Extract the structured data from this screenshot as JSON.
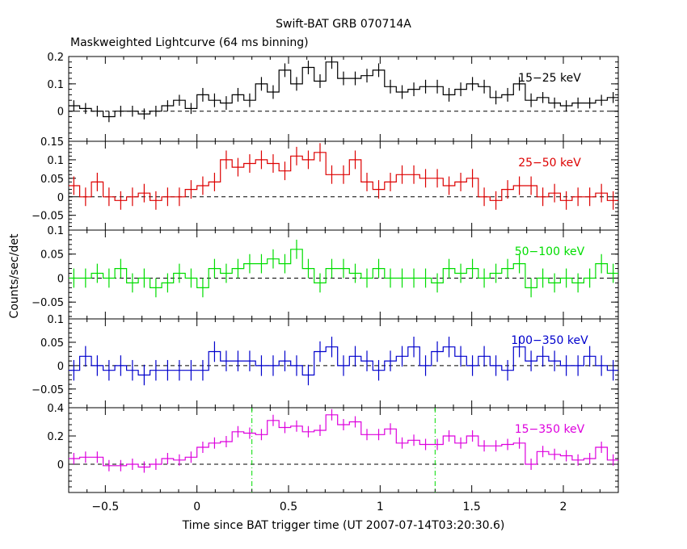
{
  "title": "Swift-BAT GRB 070714A",
  "subtitle": "Maskweighted Lightcurve (64 ms binning)",
  "chart_data": {
    "type": "line",
    "xlabel": "Time since BAT trigger time (UT 2007-07-14T03:20:30.6)",
    "ylabel": "Counts/sec/det",
    "xlim": [
      -0.7,
      2.3
    ],
    "x_ticks": [
      -0.5,
      0,
      0.5,
      1,
      1.5,
      2
    ],
    "x_tick_labels": [
      "−0.5",
      "0",
      "0.5",
      "1",
      "1.5",
      "2"
    ],
    "bin_width": 0.064,
    "x_start": -0.704,
    "step_style": "histogram",
    "grid": false,
    "reference_line": 0,
    "vlines": [
      0.3,
      1.3
    ],
    "panels": [
      {
        "name": "15−25 keV",
        "color": "#000000",
        "ylim": [
          -0.11,
          0.2
        ],
        "y_ticks": [
          0,
          0.1,
          0.2
        ],
        "y_tick_labels": [
          "0",
          "0.1",
          "0.2"
        ],
        "values": [
          0.02,
          0.01,
          0.0,
          -0.02,
          0.0,
          0.0,
          -0.01,
          0.0,
          0.02,
          0.04,
          0.01,
          0.06,
          0.04,
          0.03,
          0.06,
          0.04,
          0.1,
          0.07,
          0.15,
          0.1,
          0.16,
          0.11,
          0.18,
          0.12,
          0.12,
          0.13,
          0.15,
          0.09,
          0.07,
          0.08,
          0.09,
          0.09,
          0.06,
          0.08,
          0.1,
          0.09,
          0.05,
          0.06,
          0.1,
          0.04,
          0.05,
          0.03,
          0.02,
          0.03,
          0.03,
          0.04,
          0.05
        ],
        "errors": [
          0.02,
          0.02,
          0.02,
          0.02,
          0.02,
          0.02,
          0.02,
          0.02,
          0.02,
          0.02,
          0.02,
          0.025,
          0.025,
          0.025,
          0.025,
          0.025,
          0.025,
          0.025,
          0.025,
          0.025,
          0.025,
          0.025,
          0.025,
          0.025,
          0.025,
          0.025,
          0.025,
          0.025,
          0.025,
          0.025,
          0.025,
          0.025,
          0.025,
          0.025,
          0.025,
          0.025,
          0.025,
          0.025,
          0.025,
          0.025,
          0.02,
          0.02,
          0.02,
          0.02,
          0.02,
          0.02,
          0.02
        ]
      },
      {
        "name": "25−50 keV",
        "color": "#dd0000",
        "ylim": [
          -0.09,
          0.15
        ],
        "y_ticks": [
          -0.05,
          0,
          0.05,
          0.1,
          0.15
        ],
        "y_tick_labels": [
          "−0.05",
          "0",
          "0.05",
          "0.1",
          "0.15"
        ],
        "values": [
          0.03,
          0.0,
          0.04,
          0.0,
          -0.01,
          0.0,
          0.01,
          -0.01,
          0.0,
          0.0,
          0.02,
          0.03,
          0.04,
          0.1,
          0.08,
          0.09,
          0.1,
          0.09,
          0.07,
          0.11,
          0.1,
          0.12,
          0.06,
          0.06,
          0.1,
          0.04,
          0.02,
          0.04,
          0.06,
          0.06,
          0.05,
          0.05,
          0.03,
          0.04,
          0.05,
          0.0,
          -0.01,
          0.02,
          0.03,
          0.03,
          0.0,
          0.01,
          -0.01,
          0.0,
          0.0,
          0.01,
          -0.01
        ],
        "errors": [
          0.025,
          0.025,
          0.025,
          0.025,
          0.025,
          0.025,
          0.025,
          0.025,
          0.025,
          0.025,
          0.025,
          0.025,
          0.025,
          0.025,
          0.025,
          0.025,
          0.025,
          0.025,
          0.025,
          0.025,
          0.025,
          0.025,
          0.025,
          0.025,
          0.025,
          0.025,
          0.025,
          0.025,
          0.025,
          0.025,
          0.025,
          0.025,
          0.025,
          0.025,
          0.025,
          0.025,
          0.025,
          0.025,
          0.025,
          0.025,
          0.025,
          0.025,
          0.025,
          0.025,
          0.025,
          0.025,
          0.025
        ]
      },
      {
        "name": "50−100 keV",
        "color": "#00dd00",
        "ylim": [
          -0.085,
          0.1
        ],
        "y_ticks": [
          -0.05,
          0,
          0.05,
          0.1
        ],
        "y_tick_labels": [
          "−0.05",
          "0",
          "0.05",
          "0.1"
        ],
        "values": [
          0.0,
          0.0,
          0.01,
          0.0,
          0.02,
          -0.01,
          0.0,
          -0.02,
          -0.01,
          0.01,
          0.0,
          -0.02,
          0.02,
          0.01,
          0.02,
          0.03,
          0.03,
          0.04,
          0.03,
          0.06,
          0.02,
          -0.01,
          0.02,
          0.02,
          0.01,
          0.0,
          0.02,
          0.0,
          0.0,
          0.0,
          0.0,
          -0.01,
          0.02,
          0.01,
          0.02,
          0.0,
          0.01,
          0.02,
          0.03,
          -0.02,
          0.0,
          -0.01,
          0.0,
          -0.01,
          0.0,
          0.03,
          0.01
        ],
        "errors": [
          0.02,
          0.02,
          0.02,
          0.02,
          0.02,
          0.02,
          0.02,
          0.02,
          0.02,
          0.02,
          0.02,
          0.02,
          0.02,
          0.02,
          0.02,
          0.02,
          0.02,
          0.02,
          0.02,
          0.02,
          0.02,
          0.02,
          0.02,
          0.02,
          0.02,
          0.02,
          0.02,
          0.02,
          0.02,
          0.02,
          0.02,
          0.02,
          0.02,
          0.02,
          0.02,
          0.02,
          0.02,
          0.02,
          0.02,
          0.02,
          0.02,
          0.02,
          0.02,
          0.02,
          0.02,
          0.02,
          0.02
        ]
      },
      {
        "name": "100−350 keV",
        "color": "#0000cc",
        "ylim": [
          -0.09,
          0.1
        ],
        "y_ticks": [
          -0.05,
          0,
          0.05,
          0.1
        ],
        "y_tick_labels": [
          "−0.05",
          "0",
          "0.05",
          "0.1"
        ],
        "values": [
          -0.01,
          0.02,
          0.0,
          -0.01,
          0.0,
          -0.01,
          -0.02,
          -0.01,
          -0.01,
          -0.01,
          -0.01,
          -0.01,
          0.03,
          0.01,
          0.01,
          0.01,
          0.0,
          0.0,
          0.01,
          0.0,
          -0.02,
          0.03,
          0.04,
          0.0,
          0.02,
          0.01,
          -0.01,
          0.01,
          0.02,
          0.04,
          0.0,
          0.03,
          0.04,
          0.02,
          0.0,
          0.02,
          0.0,
          -0.01,
          0.04,
          0.01,
          0.02,
          0.01,
          0.0,
          0.0,
          0.02,
          0.0,
          -0.01
        ],
        "errors": [
          0.022,
          0.022,
          0.022,
          0.022,
          0.022,
          0.022,
          0.022,
          0.022,
          0.022,
          0.022,
          0.022,
          0.022,
          0.022,
          0.022,
          0.022,
          0.022,
          0.022,
          0.022,
          0.022,
          0.022,
          0.022,
          0.022,
          0.022,
          0.022,
          0.022,
          0.022,
          0.022,
          0.022,
          0.022,
          0.022,
          0.022,
          0.022,
          0.022,
          0.022,
          0.022,
          0.022,
          0.022,
          0.022,
          0.022,
          0.022,
          0.022,
          0.022,
          0.022,
          0.022,
          0.022,
          0.022,
          0.022
        ]
      },
      {
        "name": "15−350 keV",
        "color": "#dd00dd",
        "ylim": [
          -0.2,
          0.4
        ],
        "y_ticks": [
          0,
          0.2,
          0.4
        ],
        "y_tick_labels": [
          "0",
          "0.2",
          "0.4"
        ],
        "values": [
          0.04,
          0.05,
          0.05,
          -0.01,
          -0.01,
          0.0,
          -0.02,
          0.0,
          0.04,
          0.03,
          0.05,
          0.12,
          0.15,
          0.16,
          0.23,
          0.22,
          0.21,
          0.31,
          0.26,
          0.27,
          0.23,
          0.24,
          0.35,
          0.28,
          0.3,
          0.21,
          0.21,
          0.25,
          0.15,
          0.17,
          0.14,
          0.14,
          0.2,
          0.15,
          0.2,
          0.13,
          0.13,
          0.14,
          0.15,
          0.0,
          0.09,
          0.07,
          0.06,
          0.03,
          0.04,
          0.12,
          0.03
        ],
        "errors": [
          0.04,
          0.04,
          0.04,
          0.04,
          0.04,
          0.04,
          0.04,
          0.04,
          0.04,
          0.04,
          0.04,
          0.04,
          0.04,
          0.04,
          0.04,
          0.04,
          0.04,
          0.04,
          0.04,
          0.04,
          0.04,
          0.04,
          0.04,
          0.04,
          0.04,
          0.04,
          0.04,
          0.04,
          0.04,
          0.04,
          0.04,
          0.04,
          0.04,
          0.04,
          0.04,
          0.04,
          0.04,
          0.04,
          0.04,
          0.04,
          0.04,
          0.04,
          0.04,
          0.04,
          0.04,
          0.04,
          0.04
        ]
      }
    ]
  }
}
